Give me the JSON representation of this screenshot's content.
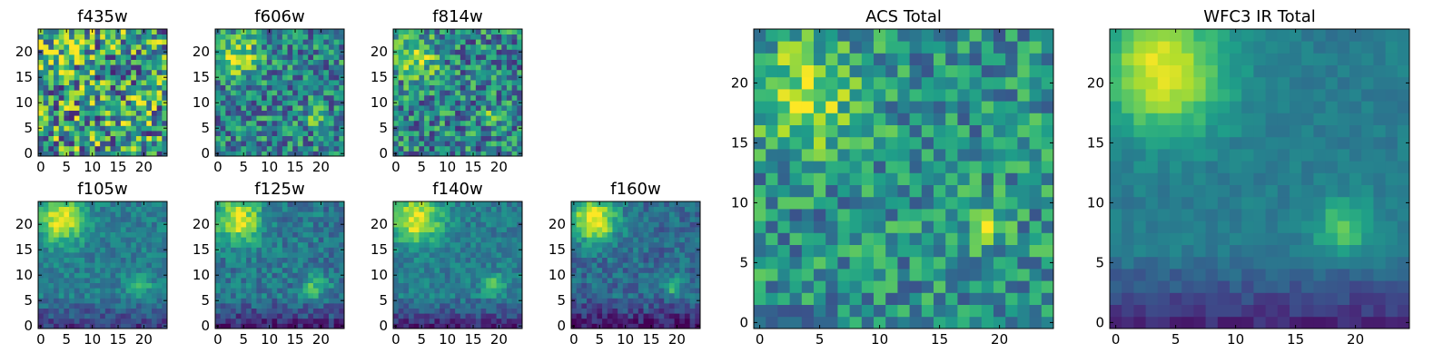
{
  "figure": {
    "type": "heatmap",
    "colormap": "viridis"
  },
  "chart_data": [
    {
      "type": "heatmap",
      "title": "f435w",
      "size": 25,
      "xticks": [
        0,
        5,
        10,
        15,
        20
      ],
      "yticks": [
        0,
        5,
        10,
        15,
        20
      ],
      "noise": 0.45,
      "base": 0.55,
      "blobs": [
        {
          "cx": 4,
          "cy": 20,
          "amp": 0.15,
          "sigma": 3
        },
        {
          "cx": 18,
          "cy": 7,
          "amp": 0.1,
          "sigma": 2
        }
      ],
      "gradient": 0,
      "seed": 11
    },
    {
      "type": "heatmap",
      "title": "f606w",
      "size": 25,
      "xticks": [
        0,
        5,
        10,
        15,
        20
      ],
      "yticks": [
        0,
        5,
        10,
        15,
        20
      ],
      "noise": 0.3,
      "base": 0.45,
      "blobs": [
        {
          "cx": 4,
          "cy": 19,
          "amp": 0.4,
          "sigma": 3
        },
        {
          "cx": 19,
          "cy": 7,
          "amp": 0.35,
          "sigma": 1.3
        }
      ],
      "gradient": 0,
      "seed": 23
    },
    {
      "type": "heatmap",
      "title": "f814w",
      "size": 25,
      "xticks": [
        0,
        5,
        10,
        15,
        20
      ],
      "yticks": [
        0,
        5,
        10,
        15,
        20
      ],
      "noise": 0.32,
      "base": 0.45,
      "blobs": [
        {
          "cx": 4,
          "cy": 19,
          "amp": 0.4,
          "sigma": 3
        },
        {
          "cx": 19,
          "cy": 7,
          "amp": 0.3,
          "sigma": 1.3
        }
      ],
      "gradient": 0,
      "seed": 37
    },
    {
      "type": "heatmap",
      "title": "f105w",
      "size": 25,
      "xticks": [
        0,
        5,
        10,
        15,
        20
      ],
      "yticks": [
        0,
        5,
        10,
        15,
        20
      ],
      "noise": 0.12,
      "base": 0.42,
      "blobs": [
        {
          "cx": 4,
          "cy": 21,
          "amp": 0.55,
          "sigma": 3.2
        },
        {
          "cx": 19,
          "cy": 8,
          "amp": 0.3,
          "sigma": 1.6
        }
      ],
      "gradient": 0.25,
      "seed": 41
    },
    {
      "type": "heatmap",
      "title": "f125w",
      "size": 25,
      "xticks": [
        0,
        5,
        10,
        15,
        20
      ],
      "yticks": [
        0,
        5,
        10,
        15,
        20
      ],
      "noise": 0.15,
      "base": 0.4,
      "blobs": [
        {
          "cx": 4,
          "cy": 21,
          "amp": 0.55,
          "sigma": 3.2
        },
        {
          "cx": 19,
          "cy": 8,
          "amp": 0.3,
          "sigma": 1.6
        }
      ],
      "gradient": 0.28,
      "seed": 53
    },
    {
      "type": "heatmap",
      "title": "f140w",
      "size": 25,
      "xticks": [
        0,
        5,
        10,
        15,
        20
      ],
      "yticks": [
        0,
        5,
        10,
        15,
        20
      ],
      "noise": 0.12,
      "base": 0.42,
      "blobs": [
        {
          "cx": 4,
          "cy": 21,
          "amp": 0.55,
          "sigma": 3.4
        },
        {
          "cx": 19,
          "cy": 8,
          "amp": 0.3,
          "sigma": 1.5
        }
      ],
      "gradient": 0.3,
      "seed": 67
    },
    {
      "type": "heatmap",
      "title": "f160w",
      "size": 25,
      "xticks": [
        0,
        5,
        10,
        15,
        20
      ],
      "yticks": [
        0,
        5,
        10,
        15,
        20
      ],
      "noise": 0.14,
      "base": 0.35,
      "blobs": [
        {
          "cx": 4,
          "cy": 21,
          "amp": 0.65,
          "sigma": 3.2
        },
        {
          "cx": 19,
          "cy": 8,
          "amp": 0.4,
          "sigma": 1.2
        }
      ],
      "gradient": 0.3,
      "seed": 79
    },
    {
      "type": "heatmap",
      "title": "ACS Total",
      "size": 25,
      "xticks": [
        0,
        5,
        10,
        15,
        20
      ],
      "yticks": [
        0,
        5,
        10,
        15,
        20
      ],
      "noise": 0.25,
      "base": 0.5,
      "blobs": [
        {
          "cx": 4,
          "cy": 19,
          "amp": 0.35,
          "sigma": 3.2
        },
        {
          "cx": 19,
          "cy": 8,
          "amp": 0.35,
          "sigma": 1.2
        }
      ],
      "gradient": 0,
      "seed": 97
    },
    {
      "type": "heatmap",
      "title": "WFC3 IR Total",
      "size": 25,
      "xticks": [
        0,
        5,
        10,
        15,
        20
      ],
      "yticks": [
        0,
        5,
        10,
        15,
        20
      ],
      "noise": 0.06,
      "base": 0.42,
      "blobs": [
        {
          "cx": 4,
          "cy": 21,
          "amp": 0.55,
          "sigma": 3.6
        },
        {
          "cx": 19,
          "cy": 8,
          "amp": 0.32,
          "sigma": 1.6
        }
      ],
      "gradient": 0.3,
      "seed": 113
    }
  ]
}
